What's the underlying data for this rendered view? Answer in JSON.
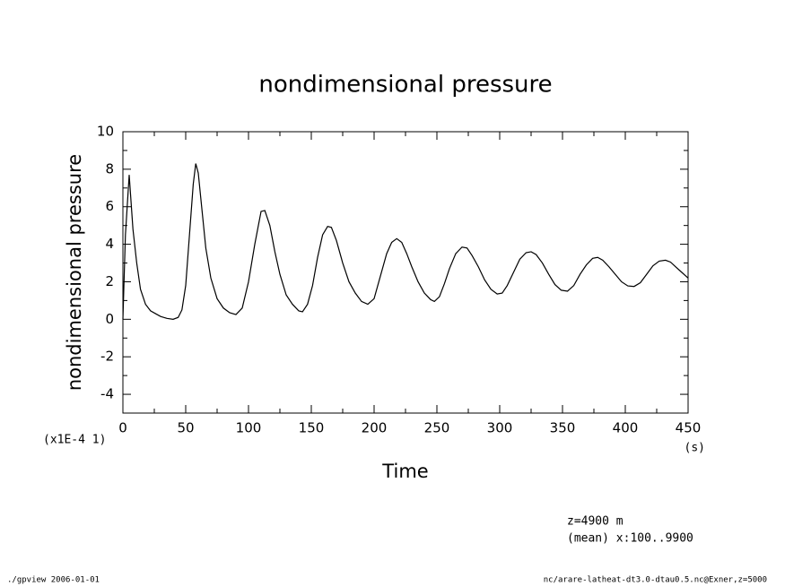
{
  "chart_data": {
    "type": "line",
    "title": "nondimensional pressure",
    "y_label": "nondimensional pressure",
    "x_label": "Time",
    "y_scale_note": "(x1E-4 1)",
    "x_unit": "(s)",
    "annotations": [
      "z=4900 m",
      "(mean) x:100..9900"
    ],
    "footer_left": "./gpview  2006-01-01",
    "footer_right": "nc/arare-latheat-dt3.0-dtau0.5.nc@Exner,z=5000",
    "color": "#000000",
    "x": [
      0,
      2,
      5,
      8,
      11,
      14,
      18,
      22,
      26,
      30,
      35,
      40,
      44,
      47,
      50,
      53,
      56,
      58,
      60,
      63,
      66,
      70,
      75,
      80,
      85,
      90,
      95,
      100,
      105,
      110,
      113,
      117,
      121,
      125,
      130,
      135,
      140,
      143,
      147,
      151,
      155,
      159,
      163,
      166,
      170,
      175,
      180,
      185,
      190,
      195,
      200,
      205,
      210,
      214,
      218,
      222,
      226,
      230,
      235,
      240,
      245,
      248,
      252,
      256,
      260,
      265,
      270,
      274,
      278,
      283,
      288,
      293,
      298,
      302,
      306,
      311,
      316,
      321,
      325,
      329,
      334,
      339,
      344,
      349,
      354,
      359,
      364,
      369,
      374,
      378,
      382,
      387,
      392,
      397,
      402,
      407,
      412,
      417,
      422,
      427,
      432,
      436,
      440,
      445,
      450
    ],
    "values": [
      0,
      4.5,
      7.7,
      4.8,
      3.0,
      1.6,
      0.8,
      0.45,
      0.3,
      0.15,
      0.05,
      0.0,
      0.1,
      0.5,
      1.8,
      4.5,
      7.2,
      8.3,
      7.8,
      5.8,
      3.8,
      2.2,
      1.1,
      0.6,
      0.35,
      0.25,
      0.6,
      2.0,
      4.0,
      5.75,
      5.8,
      5.0,
      3.6,
      2.4,
      1.3,
      0.8,
      0.45,
      0.4,
      0.8,
      1.8,
      3.3,
      4.5,
      4.95,
      4.9,
      4.2,
      3.0,
      2.0,
      1.4,
      0.95,
      0.8,
      1.1,
      2.3,
      3.5,
      4.1,
      4.3,
      4.1,
      3.5,
      2.8,
      2.0,
      1.4,
      1.05,
      0.95,
      1.2,
      1.9,
      2.7,
      3.5,
      3.85,
      3.8,
      3.4,
      2.8,
      2.1,
      1.6,
      1.35,
      1.4,
      1.8,
      2.5,
      3.2,
      3.55,
      3.6,
      3.45,
      3.0,
      2.4,
      1.85,
      1.55,
      1.5,
      1.8,
      2.4,
      2.9,
      3.25,
      3.3,
      3.15,
      2.8,
      2.4,
      2.0,
      1.78,
      1.75,
      1.95,
      2.4,
      2.85,
      3.1,
      3.15,
      3.05,
      2.8,
      2.5,
      2.2
    ],
    "xlim": [
      0,
      450
    ],
    "xticks": [
      0,
      50,
      100,
      150,
      200,
      250,
      300,
      350,
      400,
      450
    ],
    "ylim": [
      -5,
      10
    ],
    "yticks": [
      -4,
      -2,
      0,
      2,
      4,
      6,
      8,
      10
    ]
  }
}
